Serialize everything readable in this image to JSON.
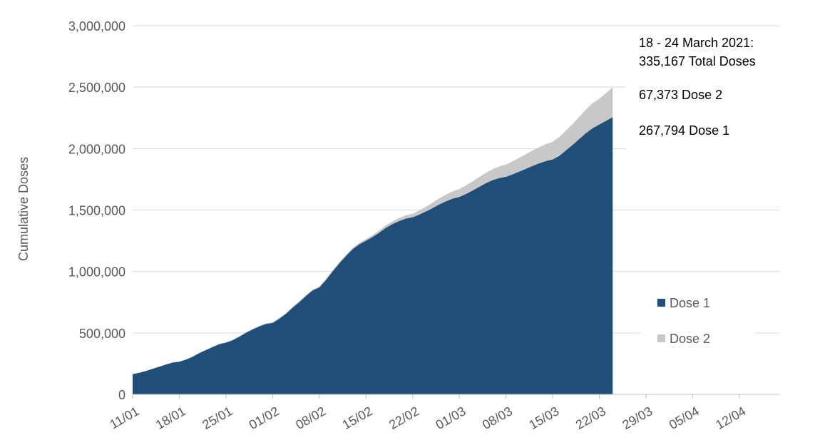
{
  "chart_data": {
    "type": "area",
    "stacked": true,
    "ylabel": "Cumulative Doses",
    "ylim": [
      0,
      3000000
    ],
    "y_ticks": [
      0,
      500000,
      1000000,
      1500000,
      2000000,
      2500000,
      3000000
    ],
    "y_tick_labels": [
      "0",
      "500,000",
      "1,000,000",
      "1,500,000",
      "2,000,000",
      "2,500,000",
      "3,000,000"
    ],
    "x_range": [
      "2021-01-11",
      "2021-04-18"
    ],
    "x_ticks": [
      "2021-01-11",
      "2021-01-18",
      "2021-01-25",
      "2021-02-01",
      "2021-02-08",
      "2021-02-15",
      "2021-02-22",
      "2021-03-01",
      "2021-03-08",
      "2021-03-15",
      "2021-03-22",
      "2021-03-29",
      "2021-04-05",
      "2021-04-12"
    ],
    "x_tick_labels": [
      "11/01",
      "18/01",
      "25/01",
      "01/02",
      "08/02",
      "15/02",
      "22/02",
      "01/03",
      "08/03",
      "15/03",
      "22/03",
      "29/03",
      "05/04",
      "12/04"
    ],
    "grid": true,
    "legend": "right",
    "series": [
      {
        "name": "Dose 1",
        "color": "#1f4e79",
        "points": [
          [
            "2021-01-11",
            165000
          ],
          [
            "2021-01-12",
            175000
          ],
          [
            "2021-01-13",
            190000
          ],
          [
            "2021-01-14",
            208000
          ],
          [
            "2021-01-15",
            225000
          ],
          [
            "2021-01-16",
            242000
          ],
          [
            "2021-01-17",
            258000
          ],
          [
            "2021-01-18",
            265000
          ],
          [
            "2021-01-19",
            282000
          ],
          [
            "2021-01-20",
            305000
          ],
          [
            "2021-01-21",
            335000
          ],
          [
            "2021-01-22",
            360000
          ],
          [
            "2021-01-23",
            385000
          ],
          [
            "2021-01-24",
            408000
          ],
          [
            "2021-01-25",
            420000
          ],
          [
            "2021-01-26",
            440000
          ],
          [
            "2021-01-27",
            468000
          ],
          [
            "2021-01-28",
            500000
          ],
          [
            "2021-01-29",
            528000
          ],
          [
            "2021-01-30",
            552000
          ],
          [
            "2021-01-31",
            572000
          ],
          [
            "2021-02-01",
            580000
          ],
          [
            "2021-02-02",
            615000
          ],
          [
            "2021-02-03",
            655000
          ],
          [
            "2021-02-04",
            705000
          ],
          [
            "2021-02-05",
            750000
          ],
          [
            "2021-02-06",
            800000
          ],
          [
            "2021-02-07",
            845000
          ],
          [
            "2021-02-08",
            870000
          ],
          [
            "2021-02-09",
            930000
          ],
          [
            "2021-02-10",
            1000000
          ],
          [
            "2021-02-11",
            1065000
          ],
          [
            "2021-02-12",
            1125000
          ],
          [
            "2021-02-13",
            1180000
          ],
          [
            "2021-02-14",
            1220000
          ],
          [
            "2021-02-15",
            1250000
          ],
          [
            "2021-02-16",
            1280000
          ],
          [
            "2021-02-17",
            1315000
          ],
          [
            "2021-02-18",
            1355000
          ],
          [
            "2021-02-19",
            1385000
          ],
          [
            "2021-02-20",
            1410000
          ],
          [
            "2021-02-21",
            1430000
          ],
          [
            "2021-02-22",
            1440000
          ],
          [
            "2021-02-23",
            1462000
          ],
          [
            "2021-02-24",
            1488000
          ],
          [
            "2021-02-25",
            1515000
          ],
          [
            "2021-02-26",
            1545000
          ],
          [
            "2021-02-27",
            1570000
          ],
          [
            "2021-02-28",
            1592000
          ],
          [
            "2021-03-01",
            1605000
          ],
          [
            "2021-03-02",
            1630000
          ],
          [
            "2021-03-03",
            1658000
          ],
          [
            "2021-03-04",
            1688000
          ],
          [
            "2021-03-05",
            1718000
          ],
          [
            "2021-03-06",
            1742000
          ],
          [
            "2021-03-07",
            1760000
          ],
          [
            "2021-03-08",
            1770000
          ],
          [
            "2021-03-09",
            1790000
          ],
          [
            "2021-03-10",
            1812000
          ],
          [
            "2021-03-11",
            1835000
          ],
          [
            "2021-03-12",
            1858000
          ],
          [
            "2021-03-13",
            1880000
          ],
          [
            "2021-03-14",
            1898000
          ],
          [
            "2021-03-15",
            1910000
          ],
          [
            "2021-03-16",
            1940000
          ],
          [
            "2021-03-17",
            1985000
          ],
          [
            "2021-03-18",
            2030000
          ],
          [
            "2021-03-19",
            2078000
          ],
          [
            "2021-03-20",
            2125000
          ],
          [
            "2021-03-21",
            2165000
          ],
          [
            "2021-03-22",
            2195000
          ],
          [
            "2021-03-23",
            2225000
          ],
          [
            "2021-03-24",
            2255000
          ]
        ]
      },
      {
        "name": "Dose 2",
        "color": "#c8c8c8",
        "points": [
          [
            "2021-01-11",
            0
          ],
          [
            "2021-01-18",
            2000
          ],
          [
            "2021-01-25",
            4000
          ],
          [
            "2021-02-01",
            6000
          ],
          [
            "2021-02-08",
            8000
          ],
          [
            "2021-02-15",
            14000
          ],
          [
            "2021-02-22",
            30000
          ],
          [
            "2021-02-25",
            45000
          ],
          [
            "2021-03-01",
            65000
          ],
          [
            "2021-03-04",
            80000
          ],
          [
            "2021-03-08",
            100000
          ],
          [
            "2021-03-11",
            120000
          ],
          [
            "2021-03-15",
            145000
          ],
          [
            "2021-03-18",
            170000
          ],
          [
            "2021-03-21",
            205000
          ],
          [
            "2021-03-22",
            210000
          ],
          [
            "2021-03-23",
            225000
          ],
          [
            "2021-03-24",
            245000
          ]
        ]
      }
    ],
    "annotations": [
      {
        "text": "18 - 24 March 2021:"
      },
      {
        "text": "335,167 Total Doses"
      },
      {
        "text": "67,373 Dose 2"
      },
      {
        "text": "267,794 Dose 1"
      }
    ]
  }
}
